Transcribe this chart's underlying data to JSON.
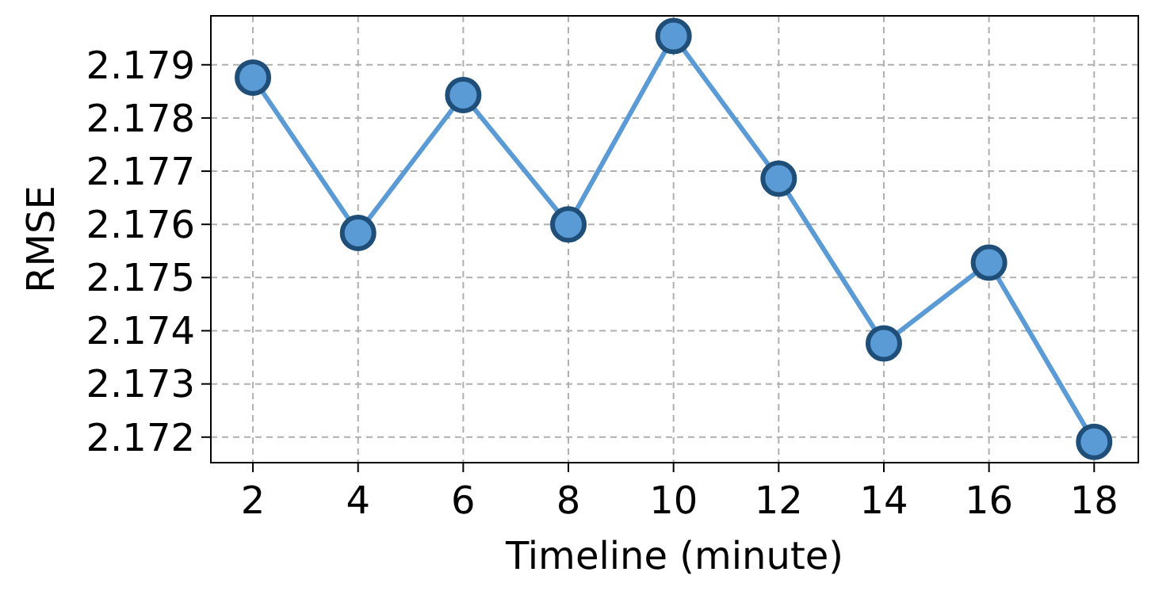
{
  "chart_data": {
    "type": "line",
    "xlabel": "Timeline (minute)",
    "ylabel": "RMSE",
    "x": [
      2,
      4,
      6,
      8,
      10,
      12,
      14,
      16,
      18
    ],
    "series": [
      {
        "color": "#5b9bd5",
        "values": [
          2.17876,
          2.17584,
          2.17843,
          2.176,
          2.17954,
          2.17686,
          2.17376,
          2.17528,
          2.17191
        ]
      }
    ],
    "xlim": [
      1.2,
      18.84
    ],
    "xticks": [
      2,
      4,
      6,
      8,
      10,
      12,
      14,
      16,
      18
    ],
    "ylim": [
      2.17152,
      2.17992
    ],
    "yticks": [
      {
        "value": 2.172,
        "label": "2.172"
      },
      {
        "value": 2.173,
        "label": "2.173"
      },
      {
        "value": 2.174,
        "label": "2.174"
      },
      {
        "value": 2.175,
        "label": "2.175"
      },
      {
        "value": 2.176,
        "label": "2.176"
      },
      {
        "value": 2.177,
        "label": "2.177"
      },
      {
        "value": 2.178,
        "label": "2.178"
      },
      {
        "value": 2.179,
        "label": "2.179"
      }
    ],
    "grid": true,
    "marker": "circle",
    "line_style": "solid"
  }
}
